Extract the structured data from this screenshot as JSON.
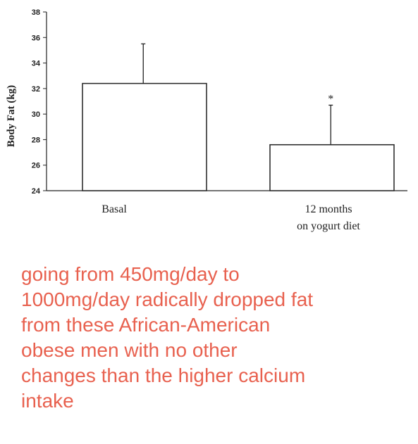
{
  "chart_data": {
    "type": "bar",
    "title": "",
    "xlabel": "",
    "ylabel": "Body Fat (kg)",
    "ylim": [
      24,
      38
    ],
    "yticks": [
      24,
      26,
      28,
      30,
      32,
      34,
      36,
      38
    ],
    "grid": false,
    "categories": [
      [
        "Basal"
      ],
      [
        "12 months",
        "on yogurt diet"
      ]
    ],
    "values": [
      32.4,
      27.6
    ],
    "error_upper": [
      35.5,
      30.7
    ],
    "significance": [
      "",
      "*"
    ],
    "bar_fill": "#ffffff",
    "stroke": "#222222"
  },
  "caption": {
    "color": "#e8614f",
    "lines": [
      "going from 450mg/day to",
      "1000mg/day radically dropped fat",
      "from these African-American",
      "obese men with no other",
      "changes than the higher calcium",
      "intake"
    ]
  }
}
